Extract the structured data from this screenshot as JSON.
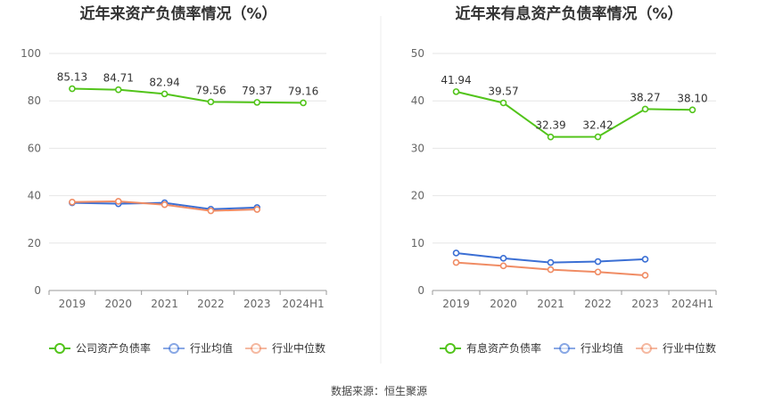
{
  "source_label": "数据来源：恒生聚源",
  "chart_data": [
    {
      "type": "line",
      "title": "近年来资产负债率情况（%）",
      "categories": [
        "2019",
        "2020",
        "2021",
        "2022",
        "2023",
        "2024H1"
      ],
      "ylim": [
        0,
        100
      ],
      "yticks": [
        0,
        20,
        40,
        60,
        80,
        100
      ],
      "grid": true,
      "legend_position": "bottom",
      "series": [
        {
          "name": "公司资产负债率",
          "color": "#52c41a",
          "values": [
            85.13,
            84.71,
            82.94,
            79.56,
            79.37,
            79.16
          ],
          "labels": [
            "85.13",
            "84.71",
            "82.94",
            "79.56",
            "79.37",
            "79.16"
          ]
        },
        {
          "name": "行业均值",
          "color": "#3b6fd4",
          "values": [
            37.0,
            36.6,
            37.0,
            34.3,
            35.0,
            null
          ]
        },
        {
          "name": "行业中位数",
          "color": "#f08c64",
          "values": [
            37.3,
            37.6,
            36.2,
            33.6,
            34.2,
            null
          ]
        }
      ]
    },
    {
      "type": "line",
      "title": "近年来有息资产负债率情况（%）",
      "categories": [
        "2019",
        "2020",
        "2021",
        "2022",
        "2023",
        "2024H1"
      ],
      "ylim": [
        0,
        50
      ],
      "yticks": [
        0,
        10,
        20,
        30,
        40,
        50
      ],
      "grid": true,
      "legend_position": "bottom",
      "series": [
        {
          "name": "有息资产负债率",
          "color": "#52c41a",
          "values": [
            41.94,
            39.57,
            32.39,
            32.42,
            38.27,
            38.1
          ],
          "labels": [
            "41.94",
            "39.57",
            "32.39",
            "32.42",
            "38.27",
            "38.10"
          ]
        },
        {
          "name": "行业均值",
          "color": "#3b6fd4",
          "values": [
            7.9,
            6.8,
            5.9,
            6.1,
            6.6,
            null
          ]
        },
        {
          "name": "行业中位数",
          "color": "#f08c64",
          "values": [
            5.9,
            5.2,
            4.4,
            3.9,
            3.2,
            null
          ]
        }
      ]
    }
  ]
}
